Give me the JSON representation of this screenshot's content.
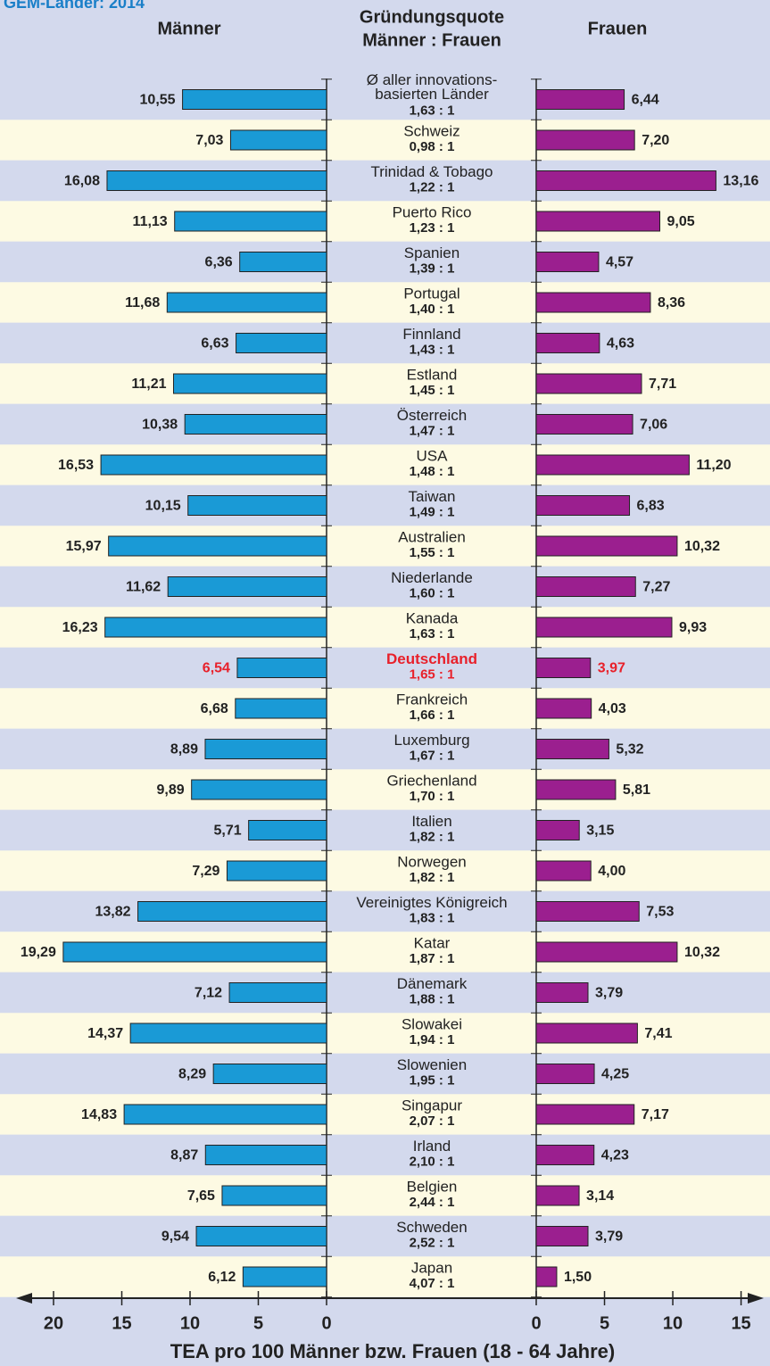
{
  "chart_data": {
    "type": "butterfly",
    "top_label": "GEM-Länder: 2014",
    "left_title": "Männer",
    "center_title": [
      "Gründungsquote",
      "Männer : Frauen"
    ],
    "right_title": "Frauen",
    "x_label": "TEA pro 100 Männer bzw. Frauen (18 - 64 Jahre)",
    "categories": [
      [
        "Ø aller innovations-",
        "basierten Länder"
      ],
      "Schweiz",
      "Trinidad & Tobago",
      "Puerto Rico",
      "Spanien",
      "Portugal",
      "Finnland",
      "Estland",
      "Österreich",
      "USA",
      "Taiwan",
      "Australien",
      "Niederlande",
      "Kanada",
      "Deutschland",
      "Frankreich",
      "Luxemburg",
      "Griechenland",
      "Italien",
      "Norwegen",
      "Vereinigtes Königreich",
      "Katar",
      "Dänemark",
      "Slowakei",
      "Slowenien",
      "Singapur",
      "Irland",
      "Belgien",
      "Schweden",
      "Japan"
    ],
    "ratios": [
      "1,63 : 1",
      "0,98 : 1",
      "1,22 : 1",
      "1,23 : 1",
      "1,39 : 1",
      "1,40 : 1",
      "1,43 : 1",
      "1,45 : 1",
      "1,47 : 1",
      "1,48 : 1",
      "1,49 : 1",
      "1,55 : 1",
      "1,60 : 1",
      "1,63 : 1",
      "1,65 : 1",
      "1,66 : 1",
      "1,67 : 1",
      "1,70 : 1",
      "1,82 : 1",
      "1,82 : 1",
      "1,83 : 1",
      "1,87 : 1",
      "1,88 : 1",
      "1,94 : 1",
      "1,95 : 1",
      "2,07 : 1",
      "2,10 : 1",
      "2,44 : 1",
      "2,52 : 1",
      "4,07 : 1"
    ],
    "series": [
      {
        "name": "Männer",
        "color": "#1a9ad6",
        "side": "left",
        "xlim": [
          0,
          22.5
        ],
        "xticks": [
          0,
          5,
          10,
          15,
          20
        ],
        "values": [
          10.55,
          7.03,
          16.08,
          11.13,
          6.36,
          11.68,
          6.63,
          11.21,
          10.38,
          16.53,
          10.15,
          15.97,
          11.62,
          16.23,
          6.54,
          6.68,
          8.89,
          9.89,
          5.71,
          7.29,
          13.82,
          19.29,
          7.12,
          14.37,
          8.29,
          14.83,
          8.87,
          7.65,
          9.54,
          6.12
        ],
        "value_labels": [
          "10,55",
          "7,03",
          "16,08",
          "11,13",
          "6,36",
          "11,68",
          "6,63",
          "11,21",
          "10,38",
          "16,53",
          "10,15",
          "15,97",
          "11,62",
          "16,23",
          "6,54",
          "6,68",
          "8,89",
          "9,89",
          "5,71",
          "7,29",
          "13,82",
          "19,29",
          "7,12",
          "14,37",
          "8,29",
          "14,83",
          "8,87",
          "7,65",
          "9,54",
          "6,12"
        ]
      },
      {
        "name": "Frauen",
        "color": "#9b1f8f",
        "side": "right",
        "xlim": [
          0,
          16.4
        ],
        "xticks": [
          0,
          5,
          10,
          15
        ],
        "values": [
          6.44,
          7.2,
          13.16,
          9.05,
          4.57,
          8.36,
          4.63,
          7.71,
          7.06,
          11.2,
          6.83,
          10.32,
          7.27,
          9.93,
          3.97,
          4.03,
          5.32,
          5.81,
          3.15,
          4.0,
          7.53,
          10.32,
          3.79,
          7.41,
          4.25,
          7.17,
          4.23,
          3.14,
          3.79,
          1.5
        ],
        "value_labels": [
          "6,44",
          "7,20",
          "13,16",
          "9,05",
          "4,57",
          "8,36",
          "4,63",
          "7,71",
          "7,06",
          "11,20",
          "6,83",
          "10,32",
          "7,27",
          "9,93",
          "3,97",
          "4,03",
          "5,32",
          "5,81",
          "3,15",
          "4,00",
          "7,53",
          "10,32",
          "3,79",
          "7,41",
          "4,25",
          "7,17",
          "4,23",
          "3,14",
          "3,79",
          "1,50"
        ]
      }
    ],
    "highlight": {
      "category": "Deutschland",
      "color": "#e8202a"
    },
    "row_colors": [
      "#d3d9ed",
      "#fdfae3"
    ]
  }
}
